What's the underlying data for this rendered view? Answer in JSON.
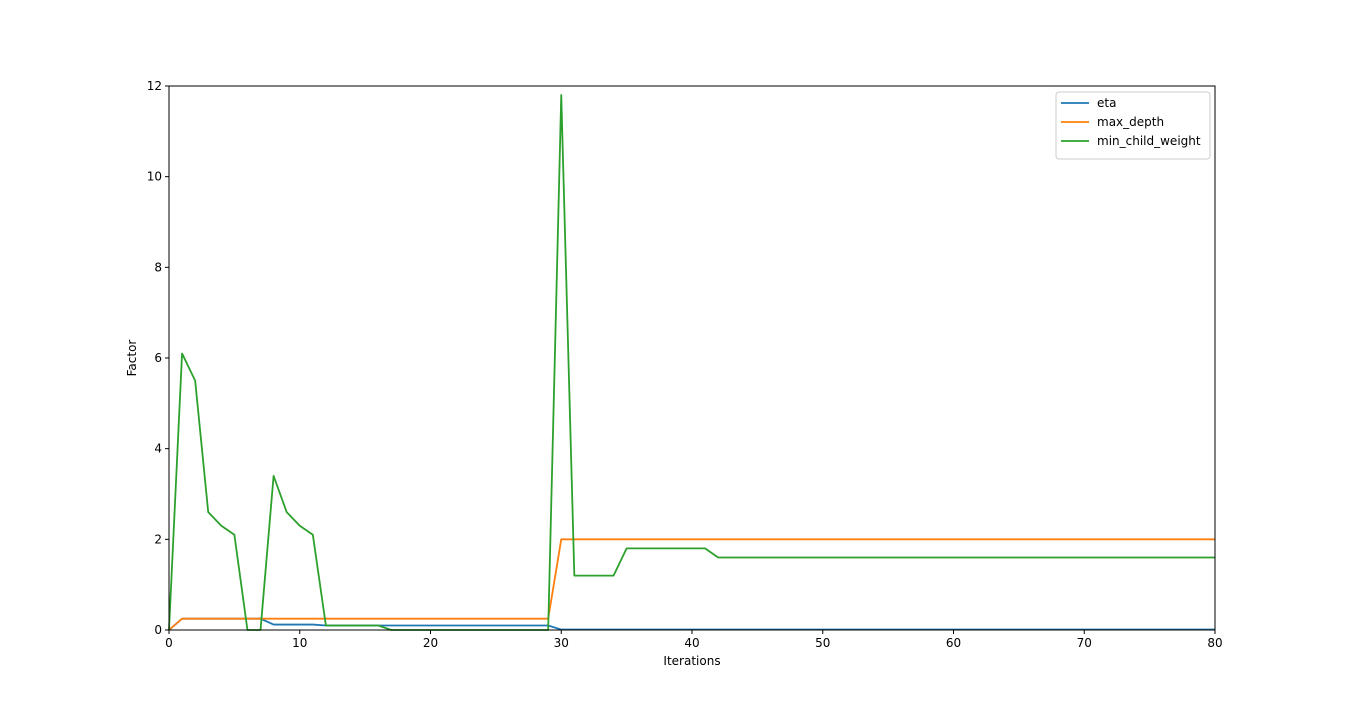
{
  "chart_data": {
    "type": "line",
    "title": "",
    "xlabel": "Iterations",
    "ylabel": "Factor",
    "xlim": [
      0,
      80
    ],
    "ylim": [
      0,
      12
    ],
    "x_ticks": [
      0,
      10,
      20,
      30,
      40,
      50,
      60,
      70,
      80
    ],
    "y_ticks": [
      0,
      2,
      4,
      6,
      8,
      10,
      12
    ],
    "x_tick_labels": [
      "0",
      "10",
      "20",
      "30",
      "40",
      "50",
      "60",
      "70",
      "80"
    ],
    "y_tick_labels": [
      "0",
      "2",
      "4",
      "6",
      "8",
      "10",
      "12"
    ],
    "grid": false,
    "legend_position": "top-right",
    "series": [
      {
        "name": "eta",
        "color": "#1f77b4",
        "points": [
          [
            0,
            0
          ],
          [
            1,
            0.25
          ],
          [
            7,
            0.25
          ],
          [
            8,
            0.12
          ],
          [
            11,
            0.12
          ],
          [
            12,
            0.1
          ],
          [
            16,
            0.1
          ],
          [
            17,
            0.1
          ],
          [
            29,
            0.1
          ],
          [
            30,
            0.01
          ],
          [
            80,
            0.01
          ]
        ]
      },
      {
        "name": "max_depth",
        "color": "#ff7f0e",
        "points": [
          [
            0,
            0
          ],
          [
            1,
            0.25
          ],
          [
            29,
            0.25
          ],
          [
            30,
            2.0
          ],
          [
            80,
            2.0
          ]
        ]
      },
      {
        "name": "min_child_weight",
        "color": "#2ca02c",
        "points": [
          [
            0,
            0
          ],
          [
            1,
            6.1
          ],
          [
            2,
            5.5
          ],
          [
            3,
            2.6
          ],
          [
            4,
            2.3
          ],
          [
            5,
            2.1
          ],
          [
            6,
            0
          ],
          [
            7,
            0
          ],
          [
            8,
            3.4
          ],
          [
            9,
            2.6
          ],
          [
            10,
            2.3
          ],
          [
            11,
            2.1
          ],
          [
            12,
            0.1
          ],
          [
            16,
            0.1
          ],
          [
            17,
            0
          ],
          [
            29,
            0
          ],
          [
            30,
            11.8
          ],
          [
            31,
            1.2
          ],
          [
            34,
            1.2
          ],
          [
            35,
            1.8
          ],
          [
            41,
            1.8
          ],
          [
            42,
            1.6
          ],
          [
            80,
            1.6
          ]
        ]
      }
    ]
  }
}
